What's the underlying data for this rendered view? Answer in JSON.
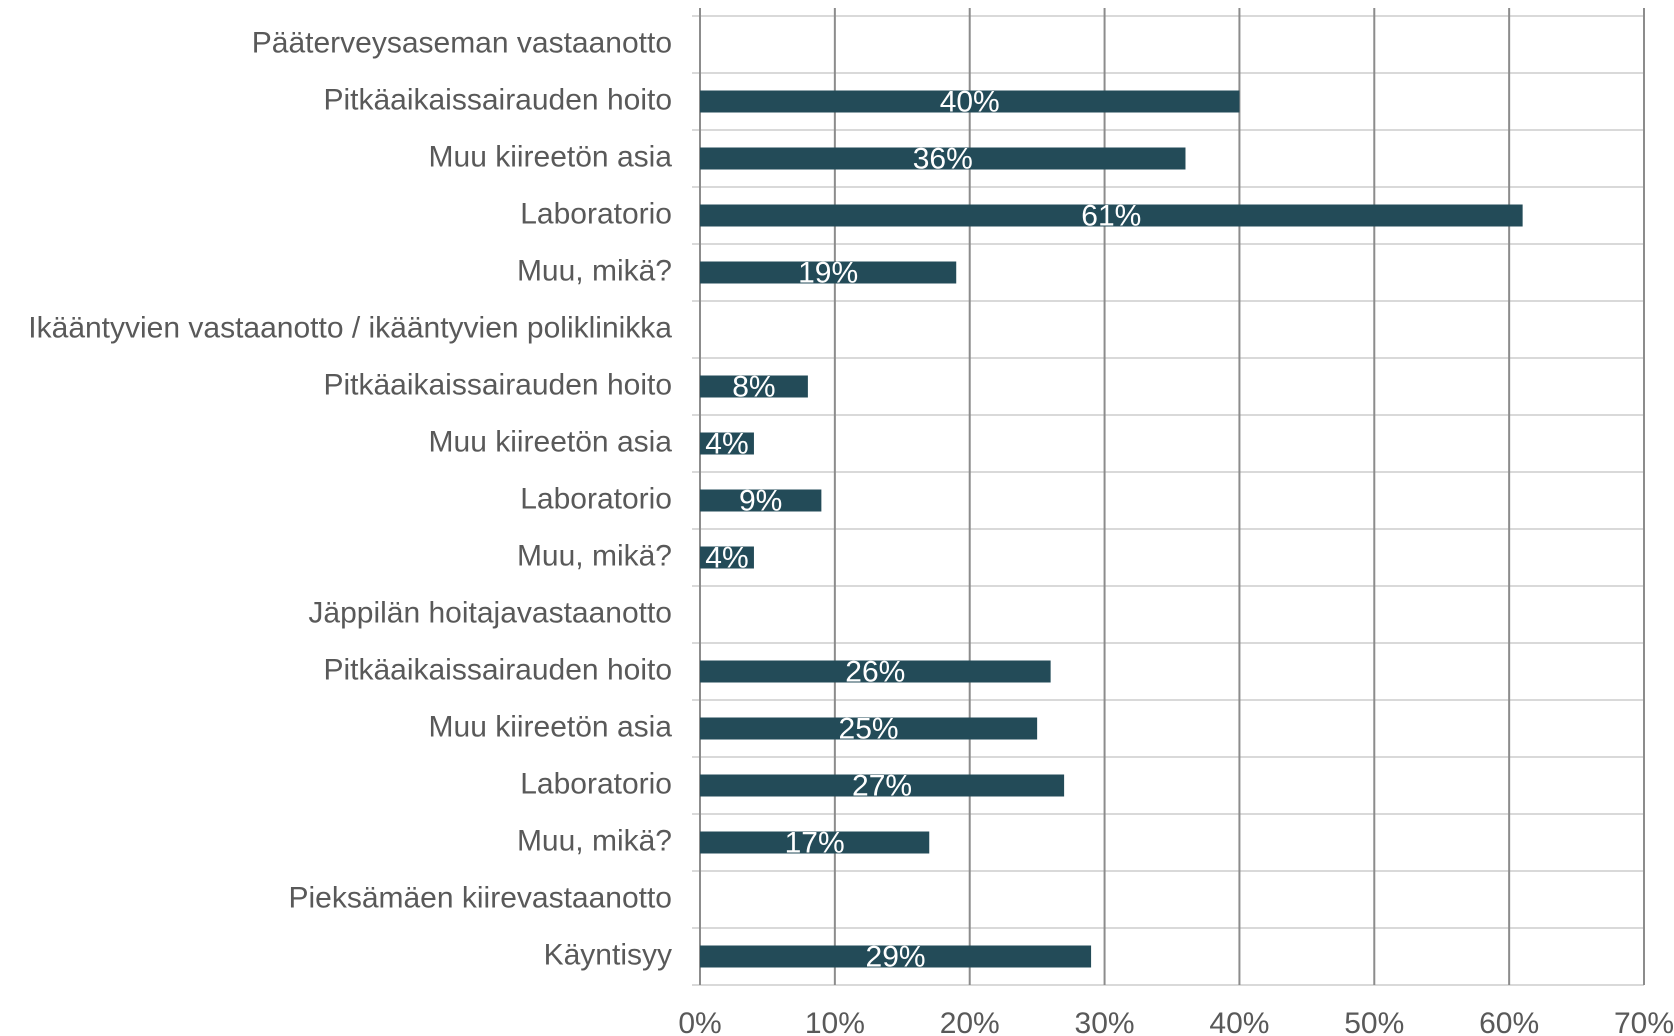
{
  "chart_data": {
    "type": "barh",
    "categories": [
      "Pääterveysaseman vastaanotto",
      "Pitkäaikaissairauden hoito",
      "Muu kiireetön asia",
      "Laboratorio",
      "Muu, mikä?",
      "Ikääntyvien vastaanotto / ikääntyvien poliklinikka",
      "Pitkäaikaissairauden hoito",
      "Muu kiireetön asia",
      "Laboratorio",
      "Muu, mikä?",
      "Jäppilän hoitajavastaanotto",
      "Pitkäaikaissairauden hoito",
      "Muu kiireetön asia",
      "Laboratorio",
      "Muu, mikä?",
      "Pieksämäen kiirevastaanotto",
      "Käyntisyy"
    ],
    "values": [
      null,
      40,
      36,
      61,
      19,
      null,
      8,
      4,
      9,
      4,
      null,
      26,
      25,
      27,
      17,
      null,
      29
    ],
    "value_labels": [
      null,
      "40%",
      "36%",
      "61%",
      "19%",
      null,
      "8%",
      "4%",
      "9%",
      "4%",
      null,
      "26%",
      "25%",
      "27%",
      "17%",
      null,
      "29%"
    ],
    "color": "#234b58",
    "xlim": [
      0,
      70
    ],
    "xticks": [
      {
        "value": 0,
        "label": "0%"
      },
      {
        "value": 10,
        "label": "10%"
      },
      {
        "value": 20,
        "label": "20%"
      },
      {
        "value": 30,
        "label": "30%"
      },
      {
        "value": 40,
        "label": "40%"
      },
      {
        "value": 50,
        "label": "50%"
      },
      {
        "value": 60,
        "label": "60%"
      },
      {
        "value": 70,
        "label": "70%"
      }
    ],
    "grid": true
  }
}
